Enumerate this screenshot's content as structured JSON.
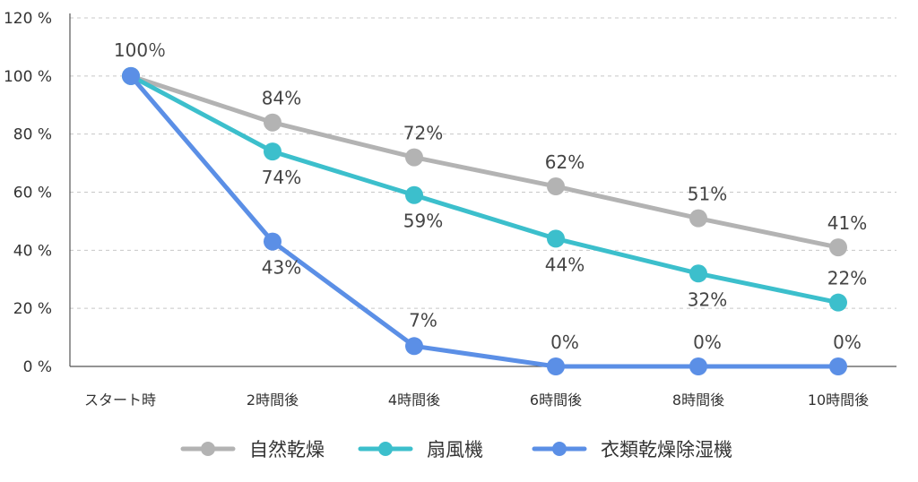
{
  "chart_data": {
    "type": "line",
    "title": "",
    "xlabel": "",
    "ylabel": "",
    "categories": [
      "スタート時",
      "2時間後",
      "4時間後",
      "6時間後",
      "8時間後",
      "10時間後"
    ],
    "ylim": [
      0,
      120
    ],
    "y_ticks": [
      0,
      20,
      40,
      60,
      80,
      100,
      120
    ],
    "y_tick_labels": [
      "0 %",
      "20 %",
      "40 %",
      "60 %",
      "80 %",
      "100 %",
      "120 %"
    ],
    "grid": "horizontal dashed",
    "legend_position": "bottom",
    "series": [
      {
        "name": "自然乾燥",
        "color": "#B3B3B3",
        "values": [
          100,
          84,
          72,
          62,
          51,
          41
        ],
        "labels": [
          "100％",
          "84%",
          "72%",
          "62%",
          "51%",
          "41%"
        ]
      },
      {
        "name": "扇風機",
        "color": "#3CBFCC",
        "values": [
          100,
          74,
          59,
          44,
          32,
          22
        ],
        "labels": [
          "",
          "74%",
          "59%",
          "44%",
          "32%",
          "22%"
        ]
      },
      {
        "name": "衣類乾燥除湿機",
        "color": "#5B8FE6",
        "values": [
          100,
          43,
          7,
          0,
          0,
          0
        ],
        "labels": [
          "",
          "43%",
          "7%",
          "0%",
          "0%",
          "0%"
        ]
      }
    ]
  }
}
